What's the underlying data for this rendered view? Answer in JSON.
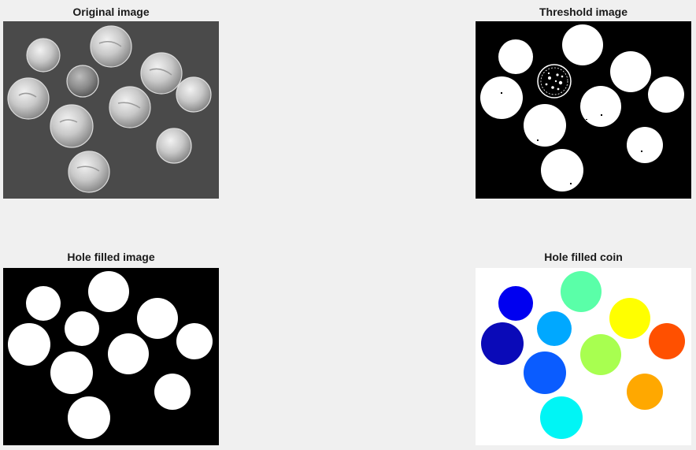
{
  "figure": {
    "background": "#f0f0f0",
    "panels": [
      {
        "id": "original",
        "title": "Original image",
        "kind": "grayscale-photo"
      },
      {
        "id": "threshold",
        "title": "Threshold image",
        "kind": "binary-mask"
      },
      {
        "id": "holefilled",
        "title": "Hole filled image",
        "kind": "binary-mask-filled"
      },
      {
        "id": "labeled",
        "title": "Hole filled coin",
        "kind": "label-colormap"
      }
    ],
    "coin_colors": [
      "#0a0ab8",
      "#0000f0",
      "#0a5cff",
      "#00a8ff",
      "#00f5f5",
      "#5affa8",
      "#a8ff50",
      "#ffff00",
      "#ffa800",
      "#ff5000"
    ]
  }
}
